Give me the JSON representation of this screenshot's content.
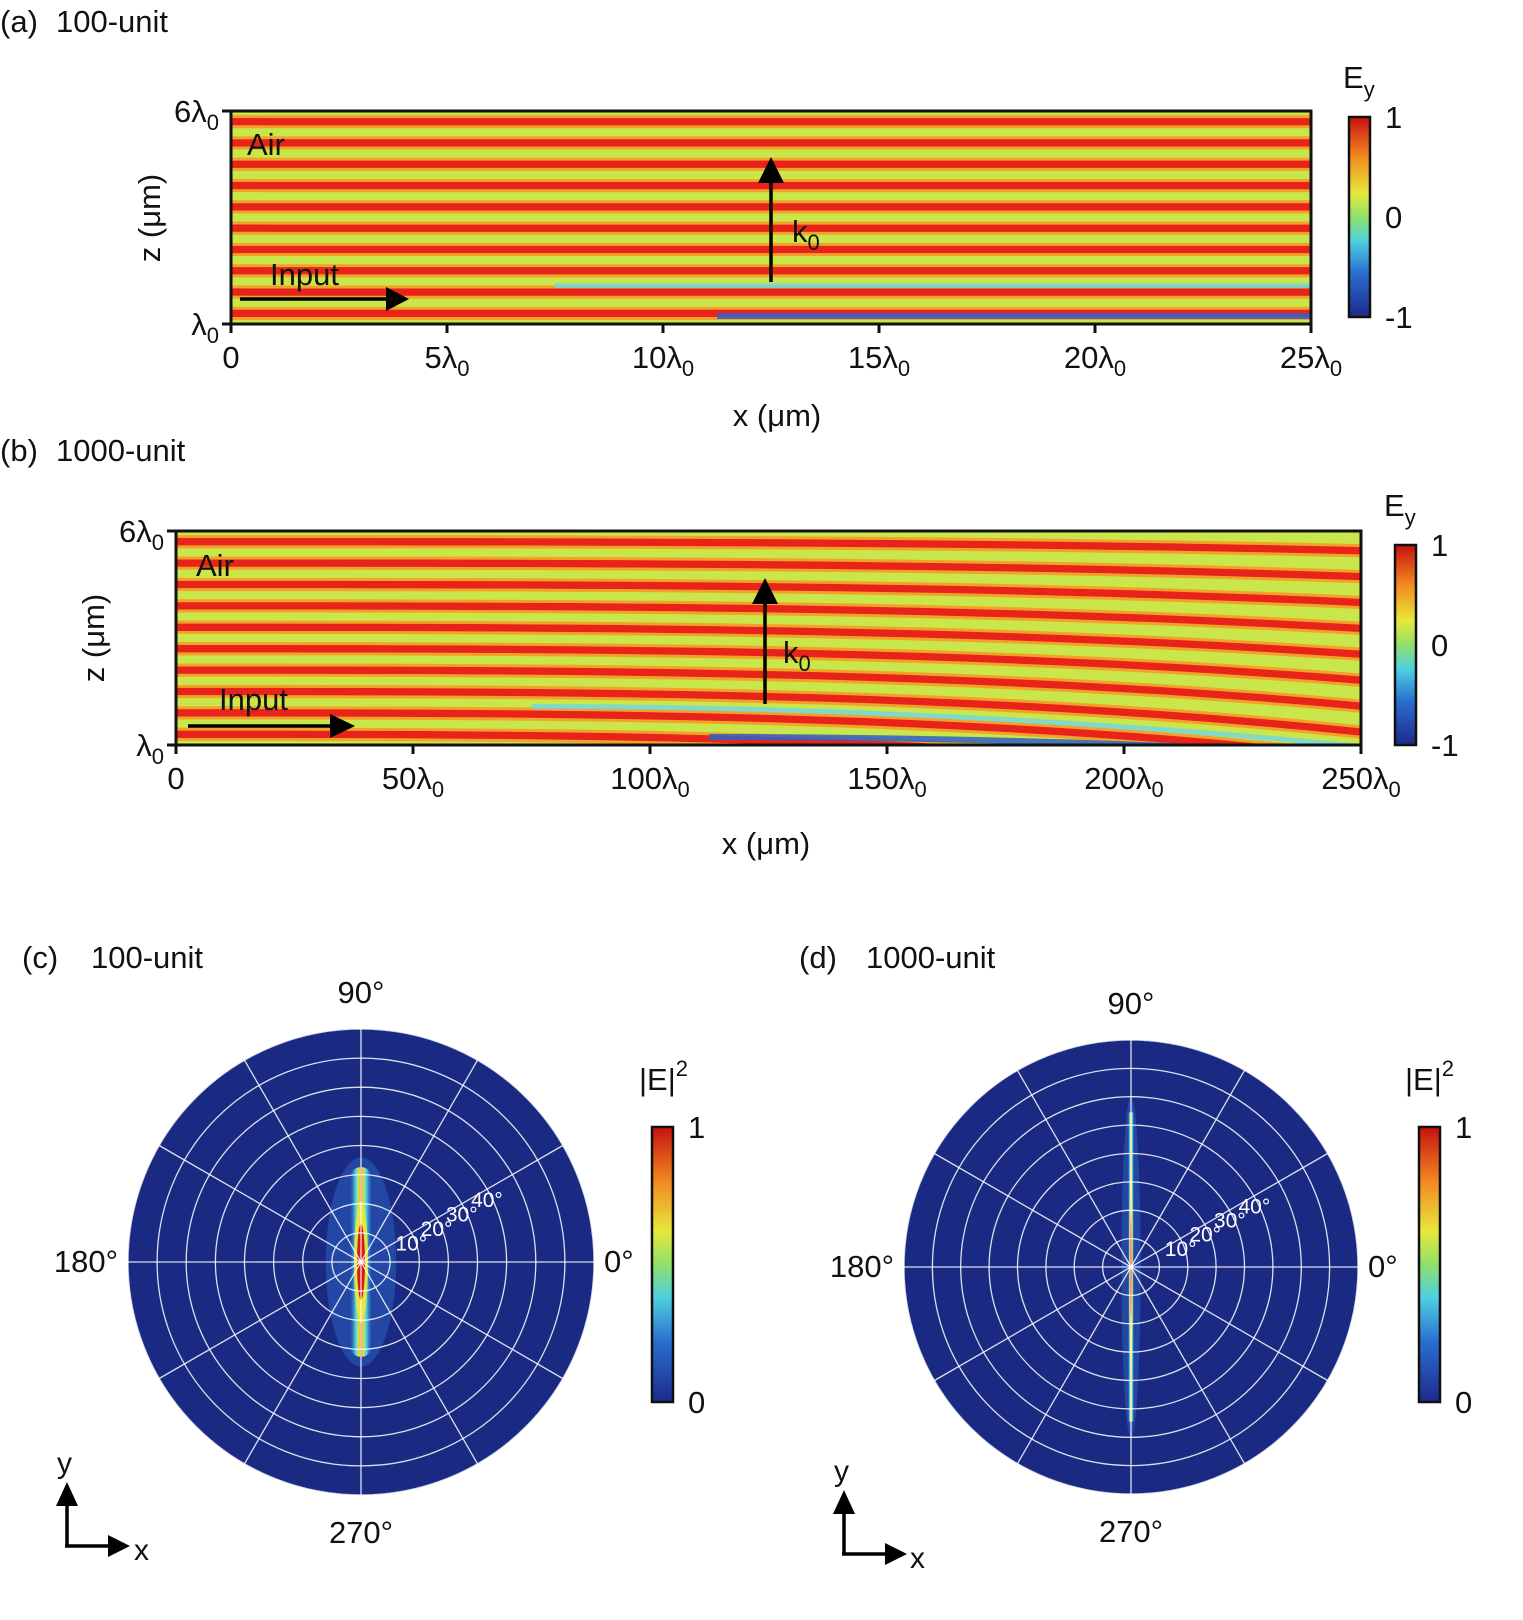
{
  "chart_data": [
    {
      "panel": "(a)",
      "title": "100-unit",
      "type": "heatmap",
      "quantity": "E",
      "quantity_sub": "y",
      "xlabel": "x (μm)",
      "ylabel": "z (μm)",
      "xlim": [
        0,
        25
      ],
      "ylim": [
        1,
        6
      ],
      "x_ticks": [
        {
          "v": 0,
          "t": "0",
          "sub": ""
        },
        {
          "v": 5,
          "t": "5λ",
          "sub": "0"
        },
        {
          "v": 10,
          "t": "10λ",
          "sub": "0"
        },
        {
          "v": 15,
          "t": "15λ",
          "sub": "0"
        },
        {
          "v": 20,
          "t": "20λ",
          "sub": "0"
        },
        {
          "v": 25,
          "t": "25λ",
          "sub": "0"
        }
      ],
      "y_ticks": [
        {
          "v": 1,
          "t": "λ",
          "sub": "0"
        },
        {
          "v": 6,
          "t": "6λ",
          "sub": "0"
        }
      ],
      "colorbar": {
        "ticks": [
          {
            "v": 1,
            "t": "1"
          },
          {
            "v": 0,
            "t": "0"
          },
          {
            "v": -1,
            "t": "-1"
          }
        ],
        "range": [
          -1,
          1
        ],
        "colormap": "jet"
      },
      "annotations": {
        "region": "Air",
        "input": "Input",
        "wavevector": "k",
        "wavevector_sub": "0"
      },
      "stripes": 10,
      "curvature": 0.0
    },
    {
      "panel": "(b)",
      "title": "1000-unit",
      "type": "heatmap",
      "quantity": "E",
      "quantity_sub": "y",
      "xlabel": "x (μm)",
      "ylabel": "z (μm)",
      "xlim": [
        0,
        250
      ],
      "ylim": [
        1,
        6
      ],
      "x_ticks": [
        {
          "v": 0,
          "t": "0",
          "sub": ""
        },
        {
          "v": 50,
          "t": "50λ",
          "sub": "0"
        },
        {
          "v": 100,
          "t": "100λ",
          "sub": "0"
        },
        {
          "v": 150,
          "t": "150λ",
          "sub": "0"
        },
        {
          "v": 200,
          "t": "200λ",
          "sub": "0"
        },
        {
          "v": 250,
          "t": "250λ",
          "sub": "0"
        }
      ],
      "y_ticks": [
        {
          "v": 1,
          "t": "λ",
          "sub": "0"
        },
        {
          "v": 6,
          "t": "6λ",
          "sub": "0"
        }
      ],
      "colorbar": {
        "ticks": [
          {
            "v": 1,
            "t": "1"
          },
          {
            "v": 0,
            "t": "0"
          },
          {
            "v": -1,
            "t": "-1"
          }
        ],
        "range": [
          -1,
          1
        ],
        "colormap": "jet"
      },
      "annotations": {
        "region": "Air",
        "input": "Input",
        "wavevector": "k",
        "wavevector_sub": "0"
      },
      "stripes": 10,
      "curvature": 1.0
    },
    {
      "panel": "(c)",
      "title": "100-unit",
      "type": "polar-heatmap",
      "quantity": "|E|",
      "quantity_sup": "2",
      "angle_labels": [
        {
          "deg": 90,
          "t": "90°"
        },
        {
          "deg": 180,
          "t": "180°"
        },
        {
          "deg": 0,
          "t": "0°"
        },
        {
          "deg": 270,
          "t": "270°"
        }
      ],
      "radial_labels": [
        "10°",
        "20°",
        "30°",
        "40°"
      ],
      "rings": 8,
      "spokes_every_deg": 30,
      "colorbar": {
        "ticks": [
          {
            "v": 1,
            "t": "1"
          },
          {
            "v": 0,
            "t": "0"
          }
        ],
        "range": [
          0,
          1
        ],
        "colormap": "jet"
      },
      "axes": {
        "y": "y",
        "x": "x"
      },
      "beam_width": "wide"
    },
    {
      "panel": "(d)",
      "title": "1000-unit",
      "type": "polar-heatmap",
      "quantity": "|E|",
      "quantity_sup": "2",
      "angle_labels": [
        {
          "deg": 90,
          "t": "90°"
        },
        {
          "deg": 180,
          "t": "180°"
        },
        {
          "deg": 0,
          "t": "0°"
        },
        {
          "deg": 270,
          "t": "270°"
        }
      ],
      "radial_labels": [
        "10°",
        "20°",
        "30°",
        "40°"
      ],
      "rings": 8,
      "spokes_every_deg": 30,
      "colorbar": {
        "ticks": [
          {
            "v": 1,
            "t": "1"
          },
          {
            "v": 0,
            "t": "0"
          }
        ],
        "range": [
          0,
          1
        ],
        "colormap": "jet"
      },
      "axes": {
        "y": "y",
        "x": "x"
      },
      "beam_width": "narrow"
    }
  ],
  "colors": {
    "field_red": "#e8231a",
    "field_green": "#c9e64a",
    "field_orange": "#f2a22a",
    "polar_background": "#1a2a82",
    "grid": "#ffffff"
  }
}
